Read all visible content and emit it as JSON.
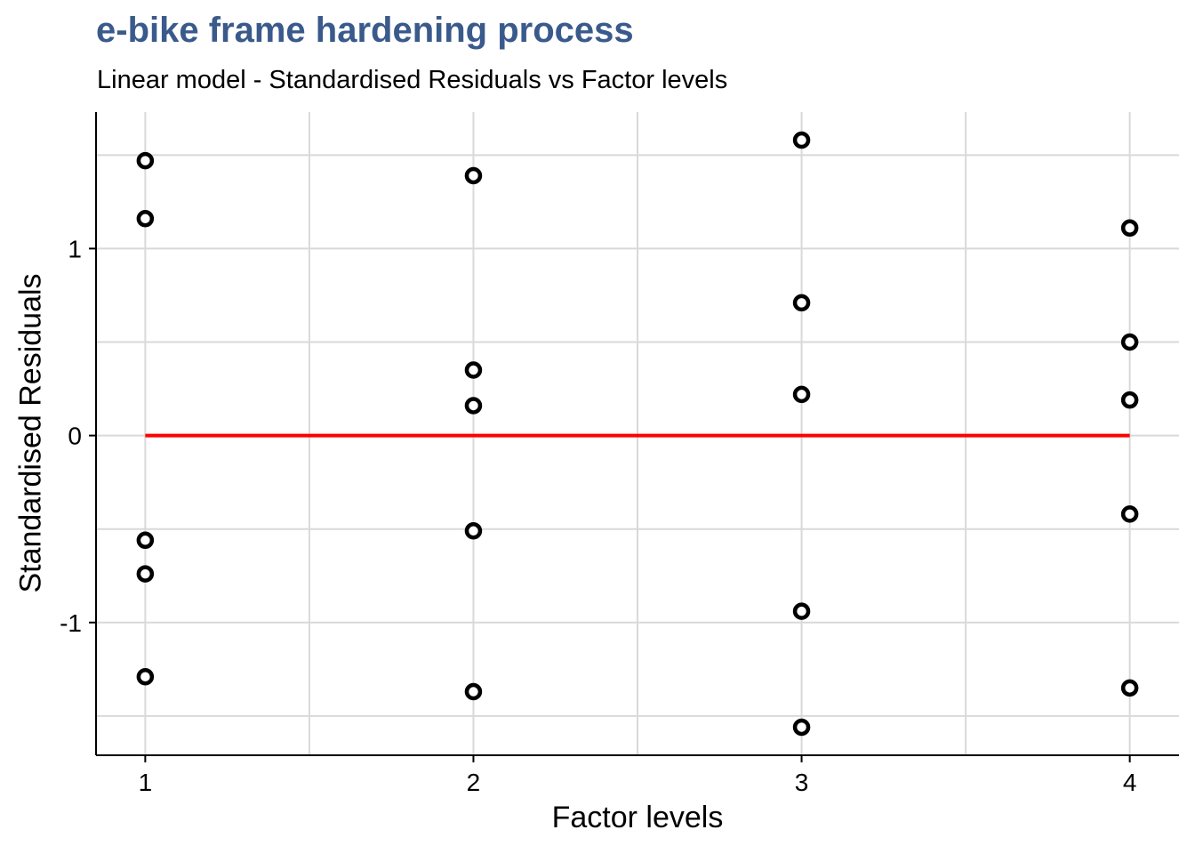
{
  "chart_data": {
    "type": "scatter",
    "title": "e-bike frame hardening process",
    "subtitle": "Linear model - Standardised Residuals vs Factor levels",
    "xlabel": "Factor levels",
    "ylabel": "Standardised Residuals",
    "x_categories": [
      "1",
      "2",
      "3",
      "4"
    ],
    "y_ticks": [
      {
        "value": -1,
        "label": "-1"
      },
      {
        "value": 0,
        "label": "0"
      },
      {
        "value": 1,
        "label": "1"
      }
    ],
    "xlim": [
      0.85,
      4.15
    ],
    "ylim": [
      -1.71,
      1.73
    ],
    "grid": true,
    "reference_line": {
      "y": 0,
      "color": "#ff0000"
    },
    "point_color": "#000000",
    "title_color": "#3a5a8c",
    "points": [
      {
        "x": 1,
        "y": 1.47
      },
      {
        "x": 1,
        "y": 1.16
      },
      {
        "x": 1,
        "y": -0.56
      },
      {
        "x": 1,
        "y": -0.74
      },
      {
        "x": 1,
        "y": -1.29
      },
      {
        "x": 2,
        "y": 1.39
      },
      {
        "x": 2,
        "y": 0.35
      },
      {
        "x": 2,
        "y": 0.16
      },
      {
        "x": 2,
        "y": -0.51
      },
      {
        "x": 2,
        "y": -1.37
      },
      {
        "x": 3,
        "y": 1.58
      },
      {
        "x": 3,
        "y": 0.71
      },
      {
        "x": 3,
        "y": 0.22
      },
      {
        "x": 3,
        "y": -0.94
      },
      {
        "x": 3,
        "y": -1.56
      },
      {
        "x": 4,
        "y": 1.11
      },
      {
        "x": 4,
        "y": 0.5
      },
      {
        "x": 4,
        "y": 0.19
      },
      {
        "x": 4,
        "y": -0.42
      },
      {
        "x": 4,
        "y": -1.35
      }
    ]
  }
}
